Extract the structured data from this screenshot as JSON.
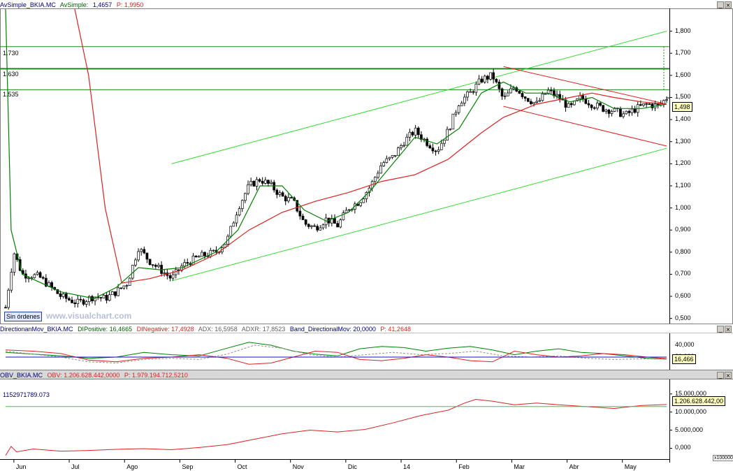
{
  "colors": {
    "green_ma": "#008000",
    "red_ma": "#e02020",
    "channel_green": "#33dd33",
    "level_line": "#1a8a1a",
    "candle": "#000000",
    "obv": "#e02020",
    "di_pos": "#008000",
    "di_neg": "#e02020",
    "adx": "#909090",
    "blue_band": "#1010c0"
  },
  "panel1": {
    "header": {
      "name": "AvSimple_BKIA.MC",
      "indicator": "AvSimple:",
      "value": "1,4657",
      "p": "P: 1,9950"
    },
    "levels": [
      "1.730",
      "1.630",
      "1.535"
    ],
    "last_price": "1,498",
    "no_orders": "Sin órdenes",
    "watermark": "www.visualchart.com",
    "y_ticks": [
      "1,800",
      "1,700",
      "1,600",
      "1,500",
      "1,400",
      "1,300",
      "1,200",
      "1,100",
      "1,000",
      "0,900",
      "0,800",
      "0,700",
      "0,600",
      "0,500"
    ]
  },
  "panel2": {
    "header": {
      "name": "DirectionanMov_BKIA.MC",
      "dip": "DIPositive: 16,4665",
      "din": "DINegative: 17,4928",
      "adx": "ADX: 16,5958",
      "adxr": "ADXR: 17,8523",
      "band": "Band_DirectionalMov: 20,0000",
      "p": "P: 41,2648"
    },
    "y_ticks": [
      "40,000",
      "20,000"
    ],
    "last_value": "16,466"
  },
  "panel3": {
    "header": {
      "name": "OBV_BKIA.MC",
      "obv": "OBV: 1.206.628.442,0000",
      "p": "P: 1.979.194.712,5210"
    },
    "level": "1152971789.073",
    "y_ticks": [
      "15.000,000",
      "10.000,000",
      "5.000,000",
      "0,000"
    ],
    "last_value": "1.206.628.442,00",
    "scale": "x100000"
  },
  "x_axis": {
    "labels": [
      "Jun",
      "Jul",
      "Ago",
      "Sep",
      "Oct",
      "Nov",
      "Dic",
      "14",
      "Feb",
      "Mar",
      "Abr",
      "May"
    ]
  },
  "chart_data": [
    {
      "type": "candlestick",
      "title": "AvSimple_BKIA.MC",
      "ylim": [
        0.48,
        1.9
      ],
      "y_ticks": [
        1.8,
        1.7,
        1.6,
        1.5,
        1.4,
        1.3,
        1.2,
        1.1,
        1.0,
        0.9,
        0.8,
        0.7,
        0.6,
        0.5
      ],
      "x": [
        "Jun",
        "Jul",
        "Ago",
        "Sep",
        "Oct",
        "Nov",
        "Dic",
        "14",
        "Feb",
        "Mar",
        "Abr",
        "May"
      ],
      "close_path": [
        [
          0,
          0.55
        ],
        [
          0.15,
          0.8
        ],
        [
          0.3,
          0.7
        ],
        [
          0.6,
          0.69
        ],
        [
          1.0,
          0.6
        ],
        [
          1.3,
          0.57
        ],
        [
          1.6,
          0.6
        ],
        [
          1.8,
          0.59
        ],
        [
          2.0,
          0.62
        ],
        [
          2.2,
          0.66
        ],
        [
          2.4,
          0.82
        ],
        [
          2.6,
          0.76
        ],
        [
          2.8,
          0.72
        ],
        [
          3.0,
          0.68
        ],
        [
          3.2,
          0.74
        ],
        [
          3.5,
          0.78
        ],
        [
          3.8,
          0.8
        ],
        [
          4.0,
          0.85
        ],
        [
          4.2,
          1.0
        ],
        [
          4.4,
          1.1
        ],
        [
          4.6,
          1.13
        ],
        [
          4.8,
          1.1
        ],
        [
          5.0,
          1.05
        ],
        [
          5.2,
          1.03
        ],
        [
          5.4,
          0.93
        ],
        [
          5.6,
          0.91
        ],
        [
          5.8,
          0.95
        ],
        [
          6.0,
          0.92
        ],
        [
          6.2,
          1.0
        ],
        [
          6.4,
          1.03
        ],
        [
          6.6,
          1.1
        ],
        [
          6.8,
          1.2
        ],
        [
          7.0,
          1.23
        ],
        [
          7.2,
          1.3
        ],
        [
          7.4,
          1.35
        ],
        [
          7.6,
          1.3
        ],
        [
          7.8,
          1.26
        ],
        [
          8.0,
          1.35
        ],
        [
          8.2,
          1.48
        ],
        [
          8.4,
          1.52
        ],
        [
          8.6,
          1.58
        ],
        [
          8.8,
          1.6
        ],
        [
          9.0,
          1.49
        ],
        [
          9.2,
          1.55
        ],
        [
          9.4,
          1.5
        ],
        [
          9.6,
          1.47
        ],
        [
          9.8,
          1.53
        ],
        [
          10.0,
          1.5
        ],
        [
          10.2,
          1.45
        ],
        [
          10.4,
          1.5
        ],
        [
          10.6,
          1.47
        ],
        [
          10.8,
          1.45
        ],
        [
          11.0,
          1.44
        ],
        [
          11.2,
          1.42
        ],
        [
          11.4,
          1.45
        ],
        [
          11.6,
          1.47
        ],
        [
          11.8,
          1.46
        ],
        [
          11.95,
          1.498
        ]
      ],
      "green_ma": [
        [
          0,
          1.9
        ],
        [
          0.05,
          1.4
        ],
        [
          0.1,
          0.9
        ],
        [
          0.3,
          0.7
        ],
        [
          1.0,
          0.62
        ],
        [
          1.6,
          0.59
        ],
        [
          2.0,
          0.64
        ],
        [
          2.4,
          0.73
        ],
        [
          2.8,
          0.72
        ],
        [
          3.2,
          0.73
        ],
        [
          3.8,
          0.8
        ],
        [
          4.2,
          0.9
        ],
        [
          4.6,
          1.1
        ],
        [
          5.0,
          1.1
        ],
        [
          5.4,
          0.99
        ],
        [
          5.8,
          0.94
        ],
        [
          6.2,
          0.98
        ],
        [
          6.6,
          1.08
        ],
        [
          7.0,
          1.2
        ],
        [
          7.4,
          1.32
        ],
        [
          7.8,
          1.29
        ],
        [
          8.2,
          1.36
        ],
        [
          8.6,
          1.52
        ],
        [
          9.0,
          1.57
        ],
        [
          9.4,
          1.52
        ],
        [
          9.8,
          1.52
        ],
        [
          10.2,
          1.48
        ],
        [
          10.6,
          1.5
        ],
        [
          11.0,
          1.45
        ],
        [
          11.5,
          1.45
        ],
        [
          11.95,
          1.47
        ]
      ],
      "red_ma": [
        [
          1.25,
          1.9
        ],
        [
          1.5,
          1.6
        ],
        [
          1.8,
          1.0
        ],
        [
          2.1,
          0.66
        ],
        [
          2.6,
          0.68
        ],
        [
          3.2,
          0.72
        ],
        [
          3.8,
          0.79
        ],
        [
          4.4,
          0.9
        ],
        [
          5.0,
          0.98
        ],
        [
          5.6,
          1.03
        ],
        [
          6.2,
          1.07
        ],
        [
          6.8,
          1.12
        ],
        [
          7.4,
          1.15
        ],
        [
          8.0,
          1.22
        ],
        [
          8.6,
          1.34
        ],
        [
          9.0,
          1.41
        ],
        [
          9.6,
          1.47
        ],
        [
          10.2,
          1.5
        ],
        [
          10.6,
          1.52
        ],
        [
          11.0,
          1.5
        ],
        [
          11.5,
          1.48
        ],
        [
          11.95,
          1.47
        ]
      ],
      "channel_lines": [
        {
          "color": "green",
          "from": [
            3.0,
            1.2
          ],
          "to": [
            11.95,
            1.8
          ]
        },
        {
          "color": "green",
          "from": [
            3.0,
            0.67
          ],
          "to": [
            11.95,
            1.27
          ]
        },
        {
          "color": "red",
          "from": [
            9.0,
            1.64
          ],
          "to": [
            11.95,
            1.47
          ]
        },
        {
          "color": "red",
          "from": [
            9.0,
            1.46
          ],
          "to": [
            11.95,
            1.28
          ]
        }
      ],
      "levels": [
        1.73,
        1.63,
        1.535
      ],
      "last": 1.498
    },
    {
      "type": "line",
      "title": "DirectionanMov_BKIA.MC",
      "ylim": [
        0,
        60
      ],
      "y_ticks": [
        40,
        20
      ],
      "series": [
        {
          "name": "DIPositive",
          "values": [
            [
              0,
              28
            ],
            [
              0.5,
              25
            ],
            [
              1.0,
              22
            ],
            [
              1.5,
              18
            ],
            [
              2.0,
              20
            ],
            [
              2.5,
              28
            ],
            [
              3.0,
              24
            ],
            [
              3.5,
              22
            ],
            [
              4.0,
              35
            ],
            [
              4.4,
              45
            ],
            [
              4.8,
              40
            ],
            [
              5.2,
              30
            ],
            [
              5.6,
              25
            ],
            [
              6.0,
              22
            ],
            [
              6.4,
              34
            ],
            [
              6.8,
              38
            ],
            [
              7.2,
              36
            ],
            [
              7.6,
              30
            ],
            [
              8.0,
              35
            ],
            [
              8.4,
              38
            ],
            [
              8.8,
              32
            ],
            [
              9.2,
              24
            ],
            [
              9.6,
              30
            ],
            [
              10.0,
              34
            ],
            [
              10.4,
              28
            ],
            [
              10.8,
              26
            ],
            [
              11.2,
              22
            ],
            [
              11.6,
              18
            ],
            [
              11.95,
              16.47
            ]
          ]
        },
        {
          "name": "DINegative",
          "values": [
            [
              0,
              32
            ],
            [
              0.5,
              30
            ],
            [
              1.0,
              26
            ],
            [
              1.5,
              15
            ],
            [
              2.0,
              12
            ],
            [
              2.5,
              18
            ],
            [
              3.0,
              20
            ],
            [
              3.5,
              24
            ],
            [
              4.0,
              18
            ],
            [
              4.4,
              8
            ],
            [
              4.8,
              10
            ],
            [
              5.2,
              20
            ],
            [
              5.6,
              30
            ],
            [
              6.0,
              28
            ],
            [
              6.4,
              16
            ],
            [
              6.8,
              14
            ],
            [
              7.2,
              18
            ],
            [
              7.6,
              24
            ],
            [
              8.0,
              20
            ],
            [
              8.4,
              14
            ],
            [
              8.8,
              12
            ],
            [
              9.2,
              30
            ],
            [
              9.6,
              24
            ],
            [
              10.0,
              20
            ],
            [
              10.4,
              22
            ],
            [
              10.8,
              26
            ],
            [
              11.2,
              24
            ],
            [
              11.6,
              20
            ],
            [
              11.95,
              17.49
            ]
          ]
        },
        {
          "name": "ADX",
          "values": [
            [
              0,
              30
            ],
            [
              1.0,
              20
            ],
            [
              1.5,
              12
            ],
            [
              2.0,
              10
            ],
            [
              2.5,
              16
            ],
            [
              3.0,
              18
            ],
            [
              3.5,
              16
            ],
            [
              4.0,
              25
            ],
            [
              4.5,
              40
            ],
            [
              5.0,
              35
            ],
            [
              5.5,
              24
            ],
            [
              6.0,
              20
            ],
            [
              6.5,
              24
            ],
            [
              7.0,
              28
            ],
            [
              7.5,
              24
            ],
            [
              8.0,
              26
            ],
            [
              8.5,
              30
            ],
            [
              9.0,
              22
            ],
            [
              9.5,
              20
            ],
            [
              10.0,
              22
            ],
            [
              10.5,
              18
            ],
            [
              11.0,
              16
            ],
            [
              11.5,
              17
            ],
            [
              11.95,
              16.6
            ]
          ]
        },
        {
          "name": "Band_DirectionalMov",
          "values": [
            [
              0,
              20
            ],
            [
              11.95,
              20
            ]
          ]
        }
      ]
    },
    {
      "type": "line",
      "title": "OBV_BKIA.MC",
      "ylim": [
        -300000000,
        1900000000
      ],
      "y_ticks": [
        1500000000,
        1000000000,
        500000000,
        0
      ],
      "series": [
        {
          "name": "OBV",
          "values": [
            [
              0,
              -200000000
            ],
            [
              0.1,
              50000000
            ],
            [
              0.2,
              -100000000
            ],
            [
              0.5,
              -20000000
            ],
            [
              1.0,
              -80000000
            ],
            [
              1.5,
              -60000000
            ],
            [
              2.0,
              -30000000
            ],
            [
              2.5,
              -10000000
            ],
            [
              3.0,
              -40000000
            ],
            [
              3.5,
              20000000
            ],
            [
              4.0,
              100000000
            ],
            [
              4.5,
              250000000
            ],
            [
              5.0,
              400000000
            ],
            [
              5.5,
              500000000
            ],
            [
              6.0,
              450000000
            ],
            [
              6.5,
              520000000
            ],
            [
              7.0,
              700000000
            ],
            [
              7.5,
              900000000
            ],
            [
              8.0,
              1050000000
            ],
            [
              8.3,
              1250000000
            ],
            [
              8.5,
              1350000000
            ],
            [
              8.8,
              1300000000
            ],
            [
              9.2,
              1200000000
            ],
            [
              9.6,
              1250000000
            ],
            [
              10.0,
              1200000000
            ],
            [
              10.5,
              1150000000
            ],
            [
              11.0,
              1100000000
            ],
            [
              11.5,
              1180000000
            ],
            [
              11.95,
              1206628442
            ]
          ]
        },
        {
          "name": "level",
          "values": [
            [
              0,
              1152971789
            ],
            [
              11.95,
              1152971789
            ]
          ]
        }
      ]
    }
  ]
}
